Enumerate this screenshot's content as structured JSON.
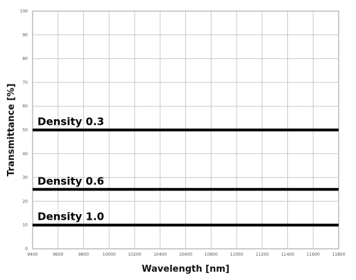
{
  "chart_data": {
    "type": "line",
    "xlabel": "Wavelength [nm]",
    "ylabel": "Transmittance [%]",
    "xlim": [
      9400,
      11800
    ],
    "ylim": [
      0,
      100
    ],
    "x_ticks": [
      9400,
      9600,
      9800,
      10000,
      10200,
      10400,
      10600,
      10800,
      11000,
      11200,
      11400,
      11600,
      11800
    ],
    "y_ticks": [
      0,
      10,
      20,
      30,
      40,
      50,
      60,
      70,
      80,
      90,
      100
    ],
    "grid": true,
    "series": [
      {
        "name": "Density 0.3",
        "x": [
          9400,
          11800
        ],
        "y": [
          50,
          50
        ]
      },
      {
        "name": "Density 0.6",
        "x": [
          9400,
          11800
        ],
        "y": [
          25,
          25
        ]
      },
      {
        "name": "Density 1.0",
        "x": [
          9400,
          11800
        ],
        "y": [
          10,
          10
        ]
      }
    ],
    "colors": {
      "line": "#000000",
      "grid": "#c8c8c8",
      "frame": "#9a9a9a"
    }
  }
}
